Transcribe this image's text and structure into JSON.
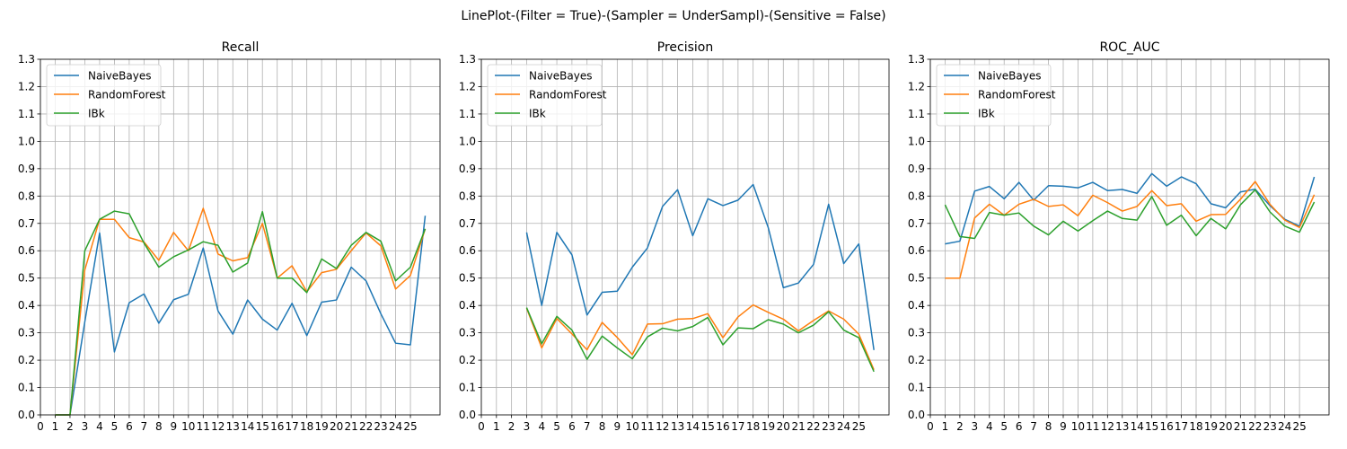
{
  "figure_title": "LinePlot-(Filter = True)-(Sampler = UnderSampl)-(Sensitive = False)",
  "chart_data": [
    {
      "type": "line",
      "title": "Recall",
      "xlabel": "",
      "ylabel": "",
      "xlim": [
        0,
        27
      ],
      "ylim": [
        0,
        1.3
      ],
      "grid": true,
      "legend_position": "top-left",
      "x_tick_labels": [
        "0",
        "1",
        "2",
        "3",
        "4",
        "5",
        "6",
        "7",
        "8",
        "9",
        "10",
        "11",
        "12",
        "13",
        "14",
        "15",
        "16",
        "17",
        "18",
        "19",
        "20",
        "21",
        "22",
        "23",
        "24",
        "25"
      ],
      "y_tick_labels": [
        "0.0",
        "0.1",
        "0.2",
        "0.3",
        "0.4",
        "0.5",
        "0.6",
        "0.7",
        "0.8",
        "0.9",
        "1.0",
        "1.1",
        "1.2",
        "1.3"
      ],
      "x": [
        1,
        2,
        3,
        4,
        5,
        6,
        7,
        8,
        9,
        10,
        11,
        12,
        13,
        14,
        15,
        16,
        17,
        18,
        19,
        20,
        21,
        22,
        23,
        24,
        25,
        26
      ],
      "series": [
        {
          "name": "NaiveBayes",
          "color": "#1f77b4",
          "values": [
            0.0,
            0.0,
            0.34,
            0.665,
            0.23,
            0.41,
            0.442,
            0.335,
            0.421,
            0.441,
            0.61,
            0.38,
            0.295,
            0.42,
            0.35,
            0.31,
            0.408,
            0.29,
            0.412,
            0.42,
            0.54,
            0.49,
            0.37,
            0.262,
            0.256,
            0.728
          ]
        },
        {
          "name": "RandomForest",
          "color": "#ff7f0e",
          "values": [
            0.0,
            0.0,
            0.53,
            0.715,
            0.715,
            0.648,
            0.632,
            0.565,
            0.667,
            0.6,
            0.755,
            0.588,
            0.563,
            0.575,
            0.7,
            0.5,
            0.545,
            0.45,
            0.52,
            0.532,
            0.6,
            0.665,
            0.618,
            0.46,
            0.51,
            0.68
          ]
        },
        {
          "name": "IBk",
          "color": "#2ca02c",
          "values": [
            0.0,
            0.0,
            0.6,
            0.715,
            0.745,
            0.735,
            0.628,
            0.54,
            0.578,
            0.603,
            0.633,
            0.62,
            0.522,
            0.555,
            0.743,
            0.5,
            0.5,
            0.447,
            0.57,
            0.535,
            0.62,
            0.667,
            0.635,
            0.49,
            0.54,
            0.68
          ]
        }
      ]
    },
    {
      "type": "line",
      "title": "Precision",
      "xlabel": "",
      "ylabel": "",
      "xlim": [
        0,
        27
      ],
      "ylim": [
        0,
        1.3
      ],
      "grid": true,
      "legend_position": "top-left",
      "x_tick_labels": [
        "0",
        "1",
        "2",
        "3",
        "4",
        "5",
        "6",
        "7",
        "8",
        "9",
        "10",
        "11",
        "12",
        "13",
        "14",
        "15",
        "16",
        "17",
        "18",
        "19",
        "20",
        "21",
        "22",
        "23",
        "24",
        "25"
      ],
      "y_tick_labels": [
        "0.0",
        "0.1",
        "0.2",
        "0.3",
        "0.4",
        "0.5",
        "0.6",
        "0.7",
        "0.8",
        "0.9",
        "1.0",
        "1.1",
        "1.2",
        "1.3"
      ],
      "x": [
        3,
        4,
        5,
        6,
        7,
        8,
        9,
        10,
        11,
        12,
        13,
        14,
        15,
        16,
        17,
        18,
        19,
        20,
        21,
        22,
        23,
        24,
        25,
        26
      ],
      "series": [
        {
          "name": "NaiveBayes",
          "color": "#1f77b4",
          "values": [
            0.667,
            0.4,
            0.667,
            0.585,
            0.365,
            0.448,
            0.452,
            0.54,
            0.61,
            0.762,
            0.823,
            0.655,
            0.79,
            0.765,
            0.785,
            0.842,
            0.685,
            0.465,
            0.482,
            0.55,
            0.77,
            0.553,
            0.625,
            0.237
          ]
        },
        {
          "name": "RandomForest",
          "color": "#ff7f0e",
          "values": [
            0.39,
            0.245,
            0.352,
            0.296,
            0.238,
            0.338,
            0.283,
            0.22,
            0.332,
            0.333,
            0.35,
            0.352,
            0.37,
            0.282,
            0.358,
            0.402,
            0.375,
            0.35,
            0.307,
            0.345,
            0.38,
            0.35,
            0.295,
            0.165
          ]
        },
        {
          "name": "IBk",
          "color": "#2ca02c",
          "values": [
            0.392,
            0.26,
            0.36,
            0.31,
            0.203,
            0.288,
            0.245,
            0.205,
            0.285,
            0.317,
            0.307,
            0.323,
            0.356,
            0.256,
            0.318,
            0.315,
            0.348,
            0.332,
            0.3,
            0.328,
            0.377,
            0.31,
            0.282,
            0.158
          ]
        }
      ]
    },
    {
      "type": "line",
      "title": "ROC_AUC",
      "xlabel": "",
      "ylabel": "",
      "xlim": [
        0,
        27
      ],
      "ylim": [
        0,
        1.3
      ],
      "grid": true,
      "legend_position": "top-left",
      "x_tick_labels": [
        "0",
        "1",
        "2",
        "3",
        "4",
        "5",
        "6",
        "7",
        "8",
        "9",
        "10",
        "11",
        "12",
        "13",
        "14",
        "15",
        "16",
        "17",
        "18",
        "19",
        "20",
        "21",
        "22",
        "23",
        "24",
        "25"
      ],
      "y_tick_labels": [
        "0.0",
        "0.1",
        "0.2",
        "0.3",
        "0.4",
        "0.5",
        "0.6",
        "0.7",
        "0.8",
        "0.9",
        "1.0",
        "1.1",
        "1.2",
        "1.3"
      ],
      "x": [
        1,
        2,
        3,
        4,
        5,
        6,
        7,
        8,
        9,
        10,
        11,
        12,
        13,
        14,
        15,
        16,
        17,
        18,
        19,
        20,
        21,
        22,
        23,
        24,
        25,
        26
      ],
      "series": [
        {
          "name": "NaiveBayes",
          "color": "#1f77b4",
          "values": [
            0.625,
            0.635,
            0.818,
            0.835,
            0.79,
            0.85,
            0.785,
            0.838,
            0.836,
            0.83,
            0.85,
            0.82,
            0.824,
            0.81,
            0.882,
            0.836,
            0.87,
            0.845,
            0.772,
            0.757,
            0.815,
            0.825,
            0.765,
            0.715,
            0.69,
            0.87
          ]
        },
        {
          "name": "RandomForest",
          "color": "#ff7f0e",
          "values": [
            0.5,
            0.5,
            0.72,
            0.77,
            0.73,
            0.77,
            0.788,
            0.762,
            0.768,
            0.728,
            0.803,
            0.776,
            0.745,
            0.762,
            0.82,
            0.765,
            0.772,
            0.708,
            0.732,
            0.733,
            0.788,
            0.853,
            0.77,
            0.712,
            0.685,
            0.805
          ]
        },
        {
          "name": "IBk",
          "color": "#2ca02c",
          "values": [
            0.768,
            0.652,
            0.645,
            0.74,
            0.73,
            0.738,
            0.69,
            0.658,
            0.708,
            0.672,
            0.71,
            0.745,
            0.718,
            0.712,
            0.798,
            0.693,
            0.73,
            0.655,
            0.718,
            0.68,
            0.768,
            0.823,
            0.742,
            0.69,
            0.668,
            0.778
          ]
        }
      ]
    }
  ]
}
